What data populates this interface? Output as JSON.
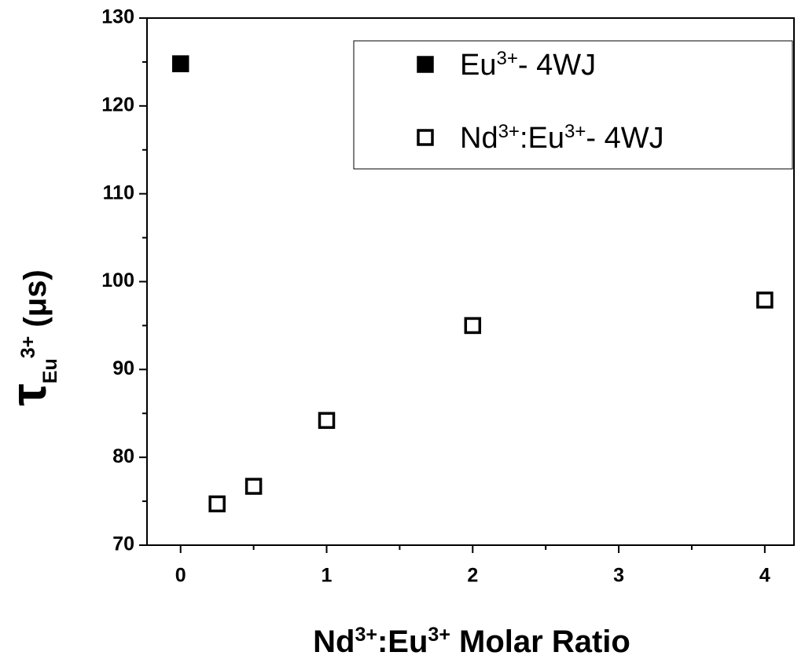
{
  "chart_data": {
    "type": "scatter",
    "xlabel": [
      {
        "text": "Nd"
      },
      {
        "text": "3+",
        "shift": "super"
      },
      {
        "text": ":Eu"
      },
      {
        "text": "3+",
        "shift": "super"
      },
      {
        "text": " Molar Ratio"
      }
    ],
    "ylabel": [
      {
        "text": "τ"
      },
      {
        "text": "Eu",
        "shift": "sub"
      },
      {
        "text": "3+",
        "shift": "super"
      },
      {
        "text": " (μs)"
      }
    ],
    "xlim": [
      -0.23,
      4.2
    ],
    "ylim": [
      70,
      130
    ],
    "xticks": [
      0,
      1,
      2,
      3,
      4
    ],
    "xminorticks": [
      0.5,
      1.5,
      2.5,
      3.5
    ],
    "yticks": [
      70,
      80,
      90,
      100,
      110,
      120,
      130
    ],
    "yminorticks": [
      75,
      85,
      95,
      105,
      115,
      125
    ],
    "legend": "upper right",
    "series": [
      {
        "name": [
          {
            "text": "Eu"
          },
          {
            "text": "3+",
            "shift": "super"
          },
          {
            "text": "- 4WJ"
          }
        ],
        "color": "#000000",
        "filled": true,
        "x": [
          0
        ],
        "values": [
          124.8
        ]
      },
      {
        "name": [
          {
            "text": "Nd"
          },
          {
            "text": "3+",
            "shift": "super"
          },
          {
            "text": ":Eu"
          },
          {
            "text": "3+",
            "shift": "super"
          },
          {
            "text": "- 4WJ"
          }
        ],
        "color": "#000000",
        "filled": false,
        "x": [
          0.25,
          0.5,
          1,
          2,
          4
        ],
        "values": [
          74.7,
          76.7,
          84.2,
          95,
          97.9
        ]
      }
    ]
  }
}
